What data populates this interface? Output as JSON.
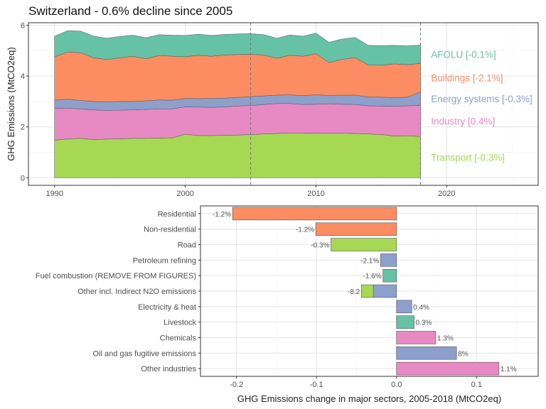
{
  "title": "Switzerland - 0.6% decline since 2005",
  "colors": {
    "Transport": "#A6D854",
    "Industry": "#E78AC3",
    "Energy systems": "#8DA0CB",
    "Buildings": "#FC8D62",
    "AFOLU": "#66C2A5"
  },
  "chart_data": [
    {
      "type": "area",
      "stacked": true,
      "ylabel": "GHG Emissions (MtCO2eq)",
      "xlim": [
        1988,
        2027
      ],
      "ylim": [
        -0.3,
        6.1
      ],
      "xticks": [
        1990,
        2000,
        2010,
        2020
      ],
      "yticks": [
        0,
        2,
        4,
        6
      ],
      "vlines": [
        2005,
        2018
      ],
      "grid": true,
      "x": [
        1990,
        1991,
        1992,
        1993,
        1994,
        1995,
        1996,
        1997,
        1998,
        1999,
        2000,
        2001,
        2002,
        2003,
        2004,
        2005,
        2006,
        2007,
        2008,
        2009,
        2010,
        2011,
        2012,
        2013,
        2014,
        2015,
        2016,
        2017,
        2018
      ],
      "series": [
        {
          "name": "Transport",
          "label": "Transport [-0.3%]",
          "values": [
            1.47,
            1.53,
            1.55,
            1.5,
            1.52,
            1.53,
            1.55,
            1.55,
            1.56,
            1.57,
            1.71,
            1.66,
            1.66,
            1.67,
            1.68,
            1.7,
            1.72,
            1.74,
            1.76,
            1.76,
            1.75,
            1.75,
            1.75,
            1.74,
            1.72,
            1.7,
            1.64,
            1.65,
            1.62
          ]
        },
        {
          "name": "Industry",
          "label": "Industry [0.4%]",
          "values": [
            1.26,
            1.21,
            1.16,
            1.17,
            1.13,
            1.13,
            1.12,
            1.14,
            1.15,
            1.14,
            1.08,
            1.12,
            1.11,
            1.12,
            1.14,
            1.14,
            1.16,
            1.18,
            1.16,
            1.12,
            1.14,
            1.16,
            1.14,
            1.14,
            1.11,
            1.12,
            1.17,
            1.18,
            1.23
          ]
        },
        {
          "name": "Energy systems",
          "label": "Energy systems [-0.3%]",
          "values": [
            0.32,
            0.35,
            0.33,
            0.33,
            0.33,
            0.34,
            0.33,
            0.34,
            0.35,
            0.34,
            0.33,
            0.33,
            0.35,
            0.34,
            0.34,
            0.35,
            0.34,
            0.33,
            0.34,
            0.35,
            0.37,
            0.33,
            0.36,
            0.37,
            0.35,
            0.35,
            0.34,
            0.34,
            0.53
          ]
        },
        {
          "name": "Buildings",
          "label": "Buildings [-2.1%]",
          "values": [
            1.7,
            1.86,
            1.88,
            1.72,
            1.67,
            1.72,
            1.78,
            1.65,
            1.75,
            1.73,
            1.64,
            1.71,
            1.66,
            1.7,
            1.69,
            1.67,
            1.61,
            1.45,
            1.56,
            1.55,
            1.62,
            1.29,
            1.41,
            1.48,
            1.25,
            1.26,
            1.33,
            1.28,
            1.12
          ]
        },
        {
          "name": "AFOLU",
          "label": "AFOLU [-0.1%]",
          "values": [
            0.82,
            0.84,
            0.85,
            0.85,
            0.84,
            0.84,
            0.83,
            0.83,
            0.82,
            0.83,
            0.84,
            0.83,
            0.82,
            0.81,
            0.81,
            0.81,
            0.8,
            0.79,
            0.8,
            0.79,
            0.81,
            0.8,
            0.8,
            0.79,
            0.78,
            0.77,
            0.73,
            0.74,
            0.72
          ]
        }
      ]
    },
    {
      "type": "bar",
      "orientation": "horizontal",
      "xlabel": "GHG Emissions change in major sectors, 2005-2018 (MtCO2eq)",
      "xlim": [
        -0.245,
        0.177
      ],
      "xticks": [
        -0.2,
        -0.1,
        0.0,
        0.1
      ],
      "grid": true,
      "categories": [
        "Residential",
        "Non-residential",
        "Road",
        "Petroleum refining",
        "Fuel combustion (REMOVE FROM FIGURES)",
        "Other incl. Indirect N2O emissions",
        "Electricity & heat",
        "Livestock",
        "Chemicals",
        "Oil and gas fugitive emissions",
        "Other industries"
      ],
      "bars": [
        {
          "category": "Residential",
          "value": -0.205,
          "sector": "Buildings",
          "label": "-1.2%"
        },
        {
          "category": "Non-residential",
          "value": -0.101,
          "sector": "Buildings",
          "label": "-1.2%"
        },
        {
          "category": "Road",
          "value": -0.082,
          "sector": "Transport",
          "label": "-0.3%"
        },
        {
          "category": "Petroleum refining",
          "value": -0.02,
          "sector": "Energy systems",
          "label": "-2.1%"
        },
        {
          "category": "Fuel combustion (REMOVE FROM FIGURES)",
          "value": -0.017,
          "sector": "AFOLU",
          "label": "-1.6%"
        },
        {
          "category": "Other incl. Indirect N2O emissions",
          "value": -0.029,
          "sector": "Energy systems",
          "label": "-8.2"
        },
        {
          "category": "Other incl. Indirect N2O emissions",
          "value": -0.015,
          "sector": "Transport",
          "label": ""
        },
        {
          "category": "Electricity & heat",
          "value": 0.019,
          "sector": "Energy systems",
          "label": "0.4%"
        },
        {
          "category": "Livestock",
          "value": 0.022,
          "sector": "AFOLU",
          "label": "0.3%"
        },
        {
          "category": "Chemicals",
          "value": 0.049,
          "sector": "Industry",
          "label": "1.3%"
        },
        {
          "category": "Oil and gas fugitive emissions",
          "value": 0.075,
          "sector": "Energy systems",
          "label": "8%"
        },
        {
          "category": "Other industries",
          "value": 0.128,
          "sector": "Industry",
          "label": "1.1%"
        }
      ]
    }
  ]
}
